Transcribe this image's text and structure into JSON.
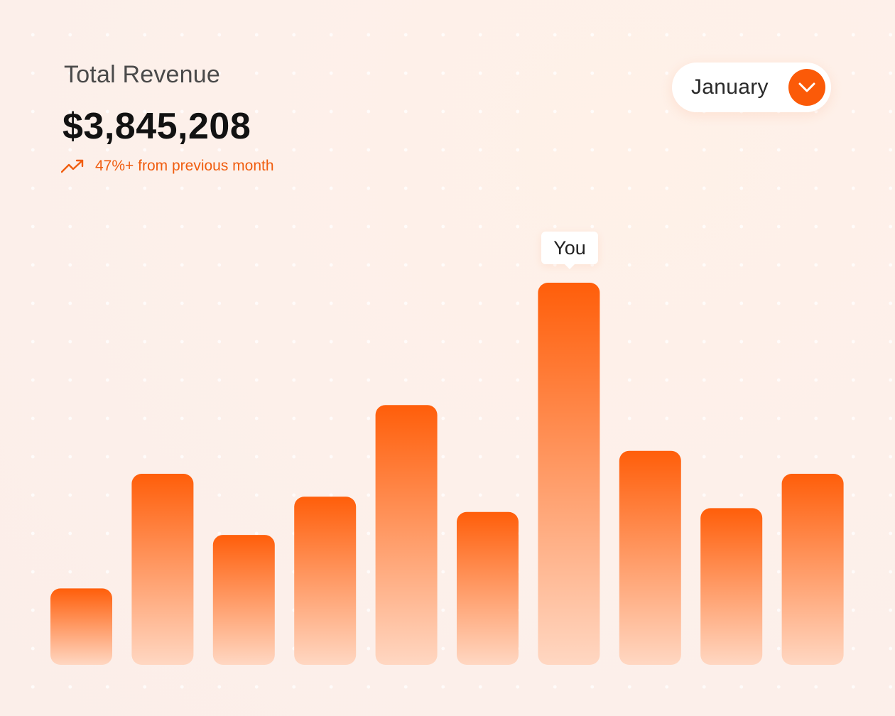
{
  "header": {
    "title": "Total Revenue",
    "amount": "$3,845,208",
    "trend_text": "47%+ from previous month",
    "trend_icon": "trending-up-icon"
  },
  "month_select": {
    "selected": "January",
    "icon": "chevron-down-icon"
  },
  "colors": {
    "accent": "#fb5a08",
    "bar_top": "#ff5e0a",
    "bar_bottom": "#ffd7c2",
    "trend": "#f05d0f"
  },
  "chart_data": {
    "type": "bar",
    "title": "",
    "xlabel": "",
    "ylabel": "",
    "grid": false,
    "categories": [
      "",
      "",
      "",
      "",
      "",
      "",
      "",
      "",
      "",
      ""
    ],
    "values": [
      20,
      50,
      34,
      44,
      68,
      40,
      100,
      56,
      41,
      50
    ],
    "ylim": [
      0,
      100
    ],
    "highlight_index": 6,
    "highlight_label": "You"
  }
}
